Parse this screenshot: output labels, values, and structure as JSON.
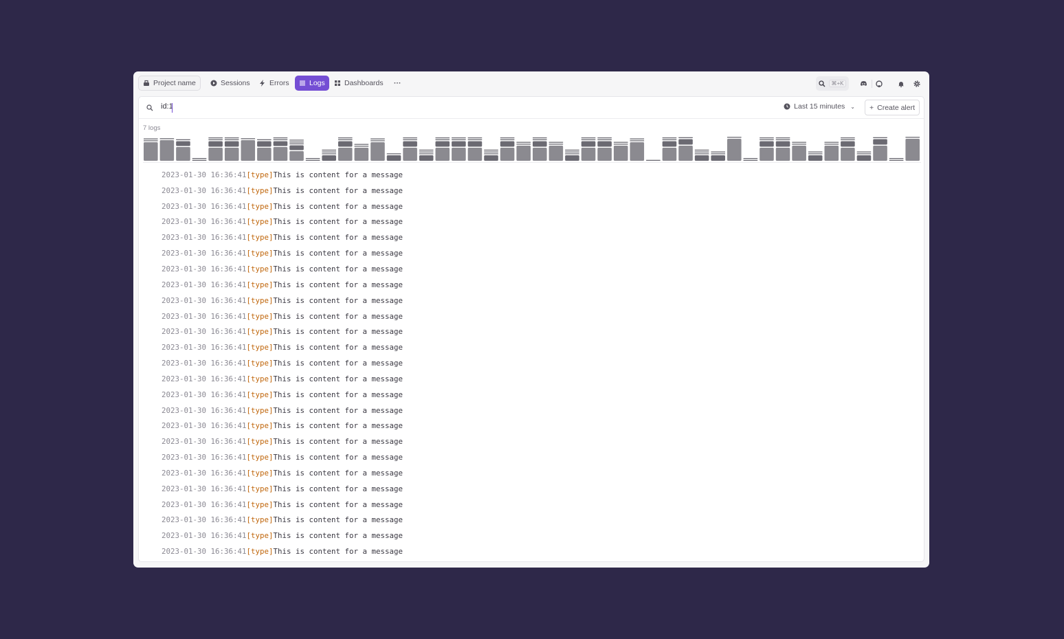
{
  "nav": {
    "project": "Project name",
    "items": [
      {
        "label": "Sessions",
        "icon": "play-circle-icon"
      },
      {
        "label": "Errors",
        "icon": "lightning-icon"
      },
      {
        "label": "Logs",
        "icon": "list-icon",
        "active": true
      },
      {
        "label": "Dashboards",
        "icon": "grid-icon"
      }
    ],
    "more": "···",
    "search_shortcut": "⌘+K"
  },
  "search": {
    "value": "id:1",
    "time_range": "Last 15 minutes",
    "create_alert": "Create alert"
  },
  "summary": {
    "count": "7 logs"
  },
  "colors": {
    "accent": "#744ed4",
    "bar_light": "#8b8a90",
    "bar_dark": "#6b6a72",
    "type": "#c0660b",
    "background": "#2e2849"
  },
  "histogram": {
    "type": "stacked-bar",
    "bars": [
      [
        27,
        1,
        1
      ],
      [
        30,
        1
      ],
      [
        20,
        7,
        1
      ],
      [
        1,
        1
      ],
      [
        19,
        8,
        1,
        1
      ],
      [
        19,
        8,
        1,
        1
      ],
      [
        30,
        1
      ],
      [
        19,
        8,
        1
      ],
      [
        20,
        7,
        1,
        1
      ],
      [
        14,
        7,
        1,
        1,
        1
      ],
      [
        1,
        1
      ],
      [
        8,
        1,
        1,
        1
      ],
      [
        19,
        8,
        1,
        1
      ],
      [
        19,
        1,
        1
      ],
      [
        27,
        1,
        1
      ],
      [
        8,
        1
      ],
      [
        19,
        8,
        1,
        1
      ],
      [
        8,
        1,
        1,
        1
      ],
      [
        19,
        8,
        1,
        1,
        1
      ],
      [
        19,
        8,
        1,
        1,
        1
      ],
      [
        19,
        8,
        1,
        1,
        1
      ],
      [
        8,
        1,
        1,
        1
      ],
      [
        19,
        8,
        1,
        1,
        1
      ],
      [
        22,
        1,
        1
      ],
      [
        19,
        8,
        1,
        1,
        1
      ],
      [
        22,
        1,
        1
      ],
      [
        8,
        1,
        1,
        1
      ],
      [
        19,
        8,
        1,
        1,
        1
      ],
      [
        19,
        8,
        1,
        1,
        1
      ],
      [
        22,
        1,
        1
      ],
      [
        27,
        1,
        1
      ],
      [
        1
      ],
      [
        19,
        8,
        1,
        1,
        1
      ],
      [
        22,
        8,
        1
      ],
      [
        8,
        1,
        1,
        1
      ],
      [
        8,
        1,
        1
      ],
      [
        32,
        1
      ],
      [
        1,
        1
      ],
      [
        19,
        8,
        1,
        1,
        1
      ],
      [
        19,
        8,
        1,
        1,
        1
      ],
      [
        22,
        1,
        1
      ],
      [
        8,
        1,
        1
      ],
      [
        22,
        1,
        1
      ],
      [
        19,
        8,
        1,
        1,
        1
      ],
      [
        8,
        1,
        1
      ],
      [
        22,
        8,
        1
      ],
      [
        1,
        1
      ],
      [
        32,
        1
      ]
    ]
  },
  "logs": [
    {
      "timestamp": "2023-01-30 16:36:41",
      "type": "[type]",
      "message": "This is content for a message"
    },
    {
      "timestamp": "2023-01-30 16:36:41",
      "type": "[type]",
      "message": "This is content for a message"
    },
    {
      "timestamp": "2023-01-30 16:36:41",
      "type": "[type]",
      "message": "This is content for a message"
    },
    {
      "timestamp": "2023-01-30 16:36:41",
      "type": "[type]",
      "message": "This is content for a message"
    },
    {
      "timestamp": "2023-01-30 16:36:41",
      "type": "[type]",
      "message": "This is content for a message"
    },
    {
      "timestamp": "2023-01-30 16:36:41",
      "type": "[type]",
      "message": "This is content for a message"
    },
    {
      "timestamp": "2023-01-30 16:36:41",
      "type": "[type]",
      "message": "This is content for a message"
    },
    {
      "timestamp": "2023-01-30 16:36:41",
      "type": "[type]",
      "message": "This is content for a message"
    },
    {
      "timestamp": "2023-01-30 16:36:41",
      "type": "[type]",
      "message": "This is content for a message"
    },
    {
      "timestamp": "2023-01-30 16:36:41",
      "type": "[type]",
      "message": "This is content for a message"
    },
    {
      "timestamp": "2023-01-30 16:36:41",
      "type": "[type]",
      "message": "This is content for a message"
    },
    {
      "timestamp": "2023-01-30 16:36:41",
      "type": "[type]",
      "message": "This is content for a message"
    },
    {
      "timestamp": "2023-01-30 16:36:41",
      "type": "[type]",
      "message": "This is content for a message"
    },
    {
      "timestamp": "2023-01-30 16:36:41",
      "type": "[type]",
      "message": "This is content for a message"
    },
    {
      "timestamp": "2023-01-30 16:36:41",
      "type": "[type]",
      "message": "This is content for a message"
    },
    {
      "timestamp": "2023-01-30 16:36:41",
      "type": "[type]",
      "message": "This is content for a message"
    },
    {
      "timestamp": "2023-01-30 16:36:41",
      "type": "[type]",
      "message": "This is content for a message"
    },
    {
      "timestamp": "2023-01-30 16:36:41",
      "type": "[type]",
      "message": "This is content for a message"
    },
    {
      "timestamp": "2023-01-30 16:36:41",
      "type": "[type]",
      "message": "This is content for a message"
    },
    {
      "timestamp": "2023-01-30 16:36:41",
      "type": "[type]",
      "message": "This is content for a message"
    },
    {
      "timestamp": "2023-01-30 16:36:41",
      "type": "[type]",
      "message": "This is content for a message"
    },
    {
      "timestamp": "2023-01-30 16:36:41",
      "type": "[type]",
      "message": "This is content for a message"
    },
    {
      "timestamp": "2023-01-30 16:36:41",
      "type": "[type]",
      "message": "This is content for a message"
    },
    {
      "timestamp": "2023-01-30 16:36:41",
      "type": "[type]",
      "message": "This is content for a message"
    },
    {
      "timestamp": "2023-01-30 16:36:41",
      "type": "[type]",
      "message": "This is content for a message"
    }
  ]
}
